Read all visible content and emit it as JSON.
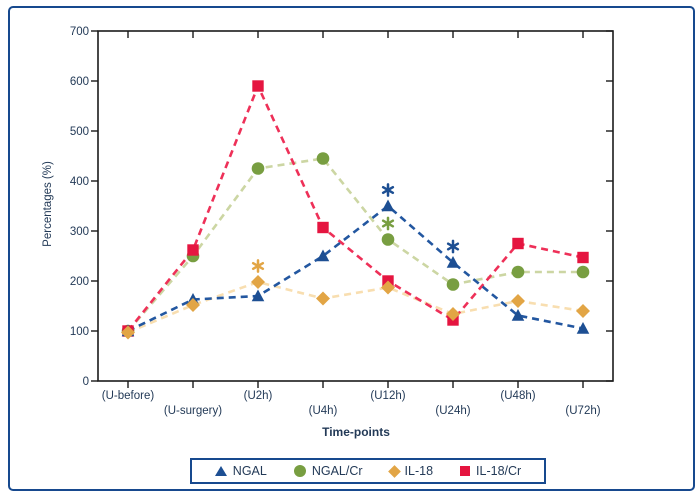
{
  "figure": {
    "colors": {
      "frame": "#17498e",
      "text": "#233a57",
      "axis": "#1a1a1a"
    }
  },
  "chart_data": {
    "type": "line",
    "title": "",
    "xlabel": "Time-points",
    "ylabel": "Percentages (%)",
    "categories": [
      "(U-before)",
      "(U-surgery)",
      "(U2h)",
      "(U4h)",
      "(U12h)",
      "(U24h)",
      "(U48h)",
      "(U72h)"
    ],
    "ylim": [
      0,
      700
    ],
    "yticks": [
      0,
      100,
      200,
      300,
      400,
      500,
      600,
      700
    ],
    "grid": false,
    "legend_position": "bottom",
    "line_style": "dashed",
    "series": [
      {
        "name": "NGAL",
        "marker": "triangle",
        "color": "#1d4f93",
        "line_color": "#2357a0",
        "values": [
          100,
          163,
          170,
          250,
          350,
          237,
          131,
          105
        ]
      },
      {
        "name": "NGAL/Cr",
        "marker": "circle",
        "color": "#789e41",
        "line_color": "#ccd6a3",
        "values": [
          100,
          250,
          425,
          445,
          283,
          193,
          218,
          218
        ]
      },
      {
        "name": "IL-18",
        "marker": "diamond",
        "color": "#e2a545",
        "line_color": "#f8deb0",
        "values": [
          97,
          152,
          198,
          165,
          187,
          134,
          160,
          140
        ]
      },
      {
        "name": "IL-18/Cr",
        "marker": "square",
        "color": "#e51540",
        "line_color": "#ee3058",
        "values": [
          100,
          262,
          590,
          307,
          200,
          122,
          275,
          247
        ]
      }
    ],
    "annotations": [
      {
        "text": "*",
        "series": "IL-18",
        "category_index": 2
      },
      {
        "text": "*",
        "series": "NGAL",
        "category_index": 4
      },
      {
        "text": "*",
        "series": "NGAL/Cr",
        "category_index": 4
      },
      {
        "text": "*",
        "series": "NGAL",
        "category_index": 5
      }
    ]
  }
}
